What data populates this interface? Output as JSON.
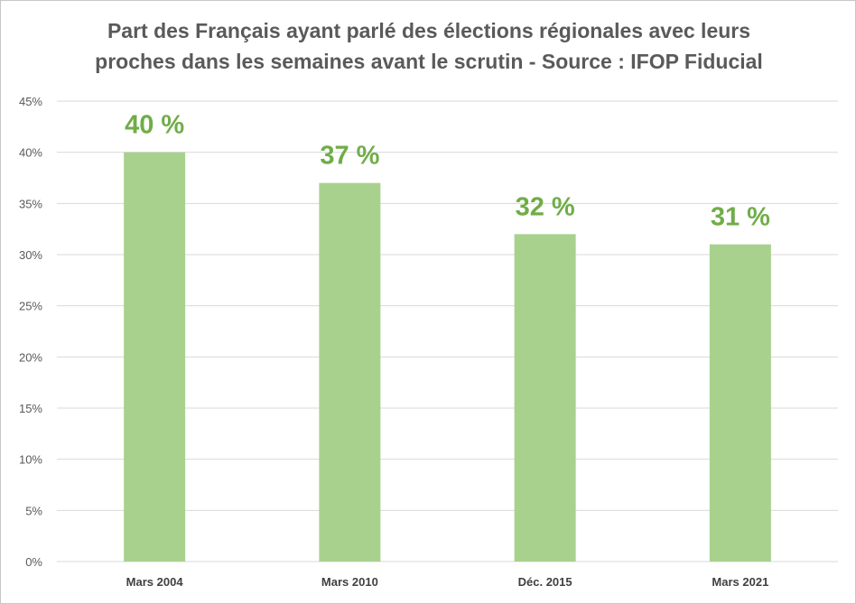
{
  "chart_data": {
    "type": "bar",
    "title_lines": [
      "Part des Français ayant parlé des élections régionales avec leurs",
      "proches dans les semaines avant le scrutin - Source : IFOP Fiducial"
    ],
    "categories": [
      "Mars 2004",
      "Mars 2010",
      "Déc. 2015",
      "Mars 2021"
    ],
    "values": [
      40,
      37,
      32,
      31
    ],
    "data_labels": [
      "40 %",
      "37 %",
      "32 %",
      "31 %"
    ],
    "y_ticks": [
      0,
      5,
      10,
      15,
      20,
      25,
      30,
      35,
      40,
      45
    ],
    "y_tick_labels": [
      "0%",
      "5%",
      "10%",
      "15%",
      "20%",
      "25%",
      "30%",
      "35%",
      "40%",
      "45%"
    ],
    "ylim": [
      0,
      45
    ],
    "xlabel": "",
    "ylabel": "",
    "grid": true,
    "legend": "none",
    "colors": {
      "bar": "#a9d18e",
      "label": "#70ad47",
      "grid": "#d9d9d9"
    }
  }
}
